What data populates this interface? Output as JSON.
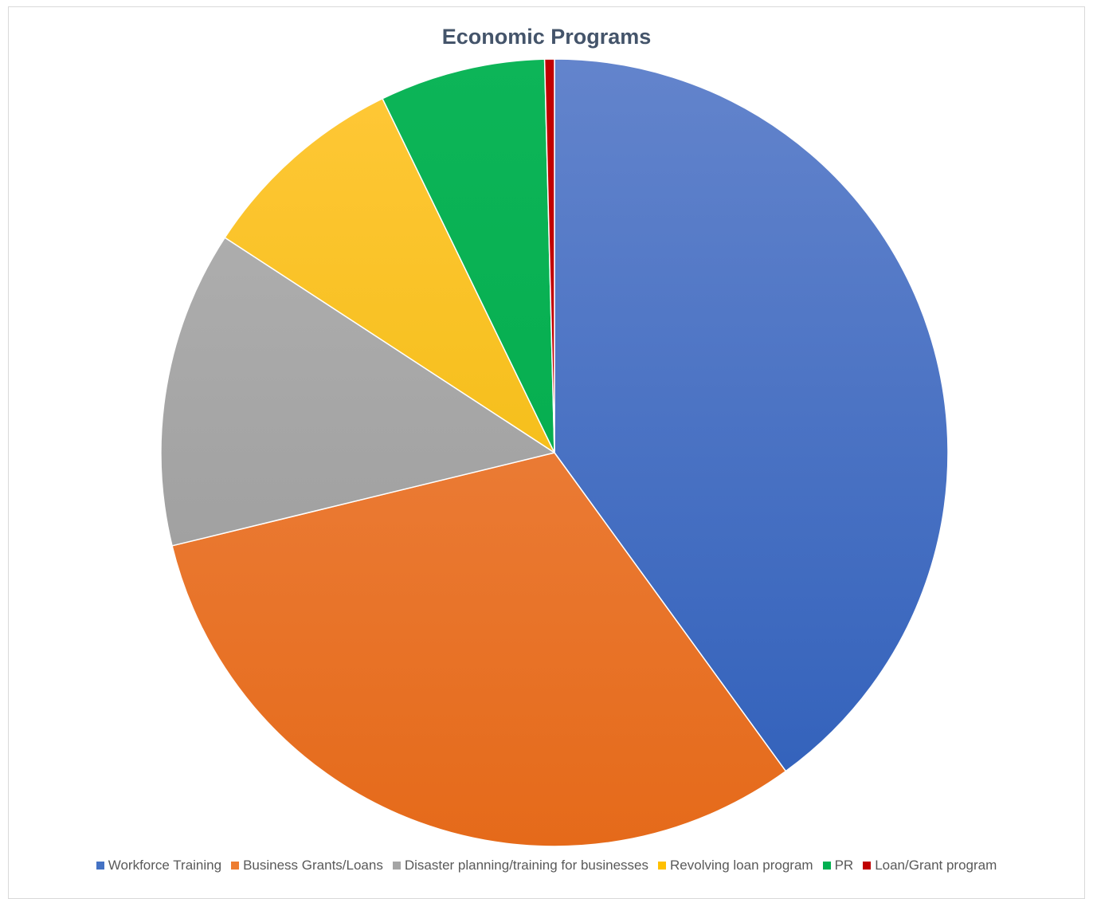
{
  "chart_data": {
    "type": "pie",
    "title": "Economic Programs",
    "legend_position": "bottom",
    "start_angle_deg": 0,
    "direction": "clockwise",
    "slices": [
      {
        "label": "Workforce Training",
        "value": 40.0,
        "color": "#4472c4",
        "color_light": "#6384cc",
        "color_dark": "#2f5fba"
      },
      {
        "label": "Business Grants/Loans",
        "value": 31.2,
        "color": "#ed7d31",
        "color_light": "#f08b4e",
        "color_dark": "#e56a1a"
      },
      {
        "label": "Disaster planning/training for businesses",
        "value": 13.0,
        "color": "#a5a5a5",
        "color_light": "#b4b4b4",
        "color_dark": "#959595"
      },
      {
        "label": "Revolving loan program",
        "value": 8.6,
        "color": "#ffc000",
        "color_light": "#ffc838",
        "color_dark": "#ecb600"
      },
      {
        "label": "PR",
        "value": 6.8,
        "color": "#00b050",
        "color_light": "#0db558",
        "color_dark": "#00a848"
      },
      {
        "label": "Loan/Grant program",
        "value": 0.4,
        "color": "#c00000",
        "color_light": "#c00000",
        "color_dark": "#c00000"
      }
    ]
  }
}
